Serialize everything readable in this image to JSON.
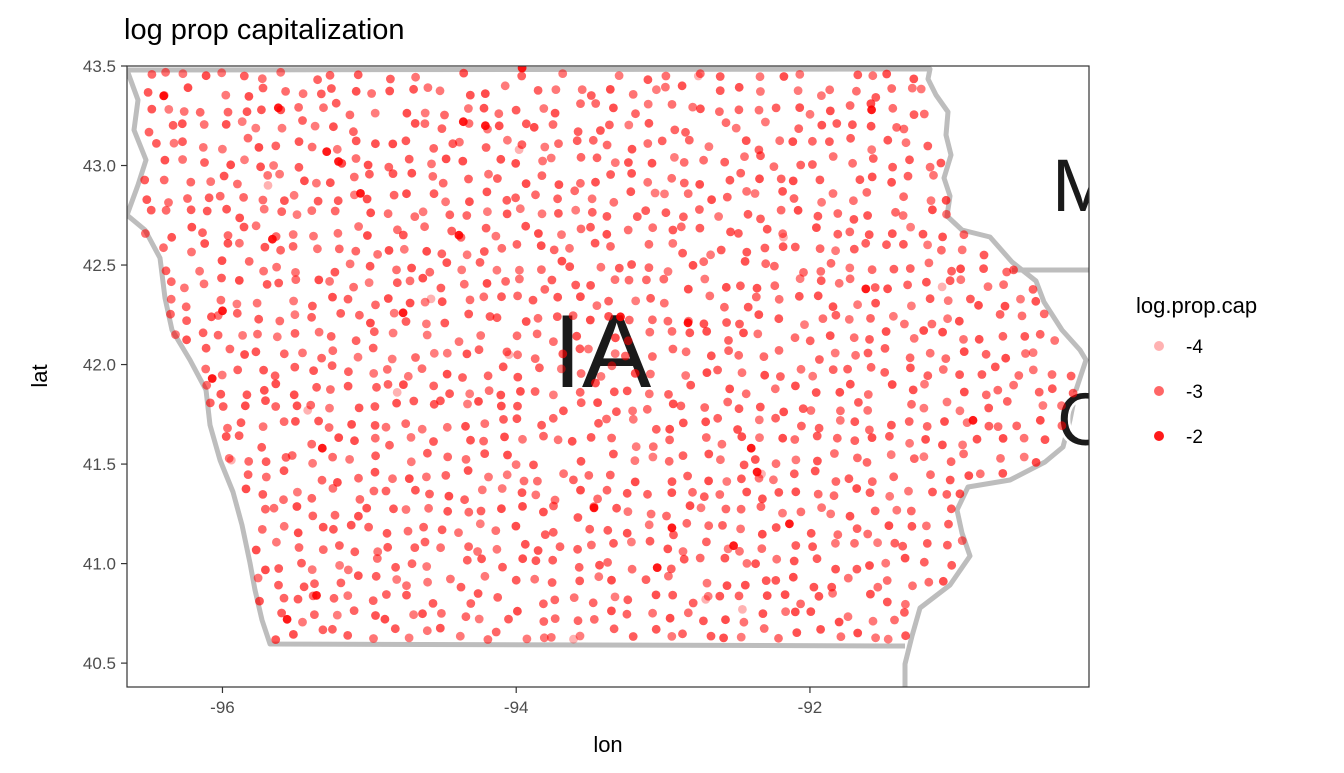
{
  "chart_data": {
    "type": "scatter",
    "title": "log prop capitalization",
    "xlabel": "lon",
    "ylabel": "lat",
    "xlim": [
      -96.65,
      -90.1
    ],
    "ylim": [
      40.38,
      43.5
    ],
    "x_ticks": [
      -96,
      -94,
      -92
    ],
    "x_tick_labels": [
      "-96",
      "-94",
      "-92"
    ],
    "y_ticks": [
      40.5,
      41.0,
      41.5,
      42.0,
      42.5,
      43.0,
      43.5
    ],
    "y_tick_labels": [
      "40.5",
      "41.0",
      "41.5",
      "42.0",
      "42.5",
      "43.0",
      "43.5"
    ],
    "grid": false,
    "point_color": "#ff0000",
    "background_map": {
      "state_label": "IA",
      "neighbor_label_fragments": [
        "M",
        "C"
      ],
      "border_color": "#b3b3b3",
      "label_color": "#1a1a1a"
    },
    "legend": {
      "title": "log.prop.cap",
      "placement": "right",
      "entries": [
        {
          "label": "-4",
          "value": -4,
          "alpha": 0.3
        },
        {
          "label": "-3",
          "value": -3,
          "alpha": 0.6
        },
        {
          "label": "-2",
          "value": -2,
          "alpha": 0.9
        }
      ]
    },
    "points_highlighted": [
      {
        "lon": -93.96,
        "lat": 43.49,
        "v": -2
      },
      {
        "lon": -95.62,
        "lat": 43.29,
        "v": -2
      },
      {
        "lon": -94.36,
        "lat": 43.22,
        "v": -2
      },
      {
        "lon": -94.21,
        "lat": 43.2,
        "v": -2
      },
      {
        "lon": -95.29,
        "lat": 43.07,
        "v": -2
      },
      {
        "lon": -95.21,
        "lat": 43.02,
        "v": -2
      },
      {
        "lon": -95.06,
        "lat": 42.86,
        "v": -2
      },
      {
        "lon": -94.39,
        "lat": 42.65,
        "v": -2
      },
      {
        "lon": -95.66,
        "lat": 42.63,
        "v": -2
      },
      {
        "lon": -96.07,
        "lat": 41.93,
        "v": -2
      },
      {
        "lon": -90.89,
        "lat": 41.72,
        "v": -2
      },
      {
        "lon": -92.52,
        "lat": 41.09,
        "v": -2
      },
      {
        "lon": -92.94,
        "lat": 41.18,
        "v": -2
      },
      {
        "lon": -93.04,
        "lat": 40.98,
        "v": -2
      },
      {
        "lon": -92.14,
        "lat": 41.2,
        "v": -2
      },
      {
        "lon": -92.36,
        "lat": 41.46,
        "v": -2
      },
      {
        "lon": -95.56,
        "lat": 40.72,
        "v": -2
      },
      {
        "lon": -95.36,
        "lat": 40.84,
        "v": -2
      },
      {
        "lon": -92.4,
        "lat": 41.58,
        "v": -2
      },
      {
        "lon": -95.32,
        "lat": 41.58,
        "v": -2
      },
      {
        "lon": -96.4,
        "lat": 43.35,
        "v": -2
      },
      {
        "lon": -96.0,
        "lat": 42.27,
        "v": -2
      },
      {
        "lon": -91.58,
        "lat": 43.28,
        "v": -2
      },
      {
        "lon": -91.62,
        "lat": 42.38,
        "v": -2
      },
      {
        "lon": -92.83,
        "lat": 42.21,
        "v": -2
      },
      {
        "lon": -93.47,
        "lat": 41.28,
        "v": -2
      },
      {
        "lon": -94.77,
        "lat": 42.26,
        "v": -2
      },
      {
        "lon": -93.29,
        "lat": 42.24,
        "v": -2
      }
    ],
    "points_faint": [
      {
        "lon": -94.05,
        "lat": 42.05,
        "v": -4
      },
      {
        "lon": -92.18,
        "lat": 42.64,
        "v": -4
      },
      {
        "lon": -92.71,
        "lat": 40.82,
        "v": -4
      },
      {
        "lon": -92.33,
        "lat": 41.45,
        "v": -4
      },
      {
        "lon": -95.42,
        "lat": 41.77,
        "v": -4
      },
      {
        "lon": -94.81,
        "lat": 41.86,
        "v": -4
      },
      {
        "lon": -93.98,
        "lat": 43.08,
        "v": -4
      },
      {
        "lon": -92.76,
        "lat": 43.45,
        "v": -4
      },
      {
        "lon": -94.58,
        "lat": 42.33,
        "v": -4
      },
      {
        "lon": -91.1,
        "lat": 42.39,
        "v": -4
      },
      {
        "lon": -95.94,
        "lat": 41.52,
        "v": -4
      },
      {
        "lon": -93.61,
        "lat": 40.62,
        "v": -4
      },
      {
        "lon": -92.46,
        "lat": 40.77,
        "v": -4
      },
      {
        "lon": -95.69,
        "lat": 42.9,
        "v": -4
      }
    ],
    "points_note": "Roughly 950 additional stations across Iowa are drawn at log.prop.cap ≈ -3"
  }
}
